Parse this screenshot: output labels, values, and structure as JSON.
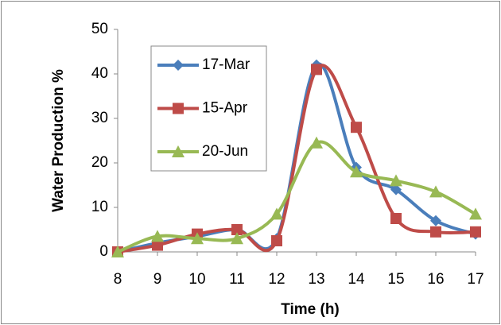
{
  "chart_data": {
    "type": "line",
    "smooth": true,
    "y_label": "Water Production %",
    "x_label": "Time (h)",
    "x": [
      8,
      9,
      10,
      11,
      12,
      13,
      14,
      15,
      16,
      17
    ],
    "xlim": [
      8,
      17
    ],
    "xticks": [
      8,
      9,
      10,
      11,
      12,
      13,
      14,
      15,
      16,
      17
    ],
    "ylim": [
      0,
      50
    ],
    "yticks": [
      0,
      10,
      20,
      30,
      40,
      50
    ],
    "grid": false,
    "legend": "upper left",
    "series": [
      {
        "name": "17-Mar",
        "color": "#4a7ebb",
        "marker": "diamond",
        "values": [
          0,
          2,
          3.5,
          5,
          3,
          42,
          19,
          14,
          7,
          4
        ]
      },
      {
        "name": "15-Apr",
        "color": "#be4b48",
        "marker": "square",
        "values": [
          0,
          1.5,
          4,
          5,
          2.5,
          41,
          28,
          7.5,
          4.5,
          4.5
        ]
      },
      {
        "name": "20-Jun",
        "color": "#98b954",
        "marker": "triangle",
        "values": [
          0,
          3.5,
          3,
          3,
          8.5,
          24.5,
          18,
          16,
          13.5,
          8.5
        ]
      }
    ]
  }
}
